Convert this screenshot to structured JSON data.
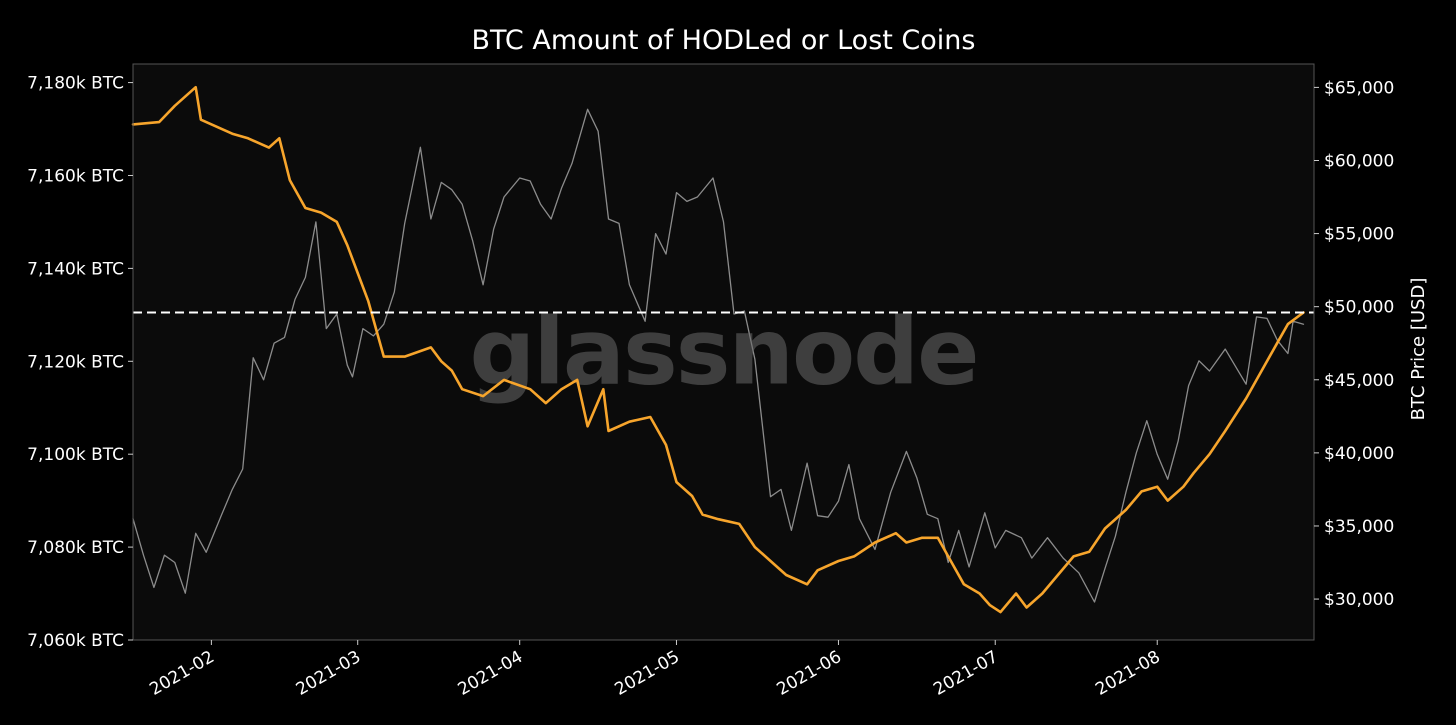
{
  "chart_data": {
    "type": "line",
    "title": "BTC Amount of HODLed or Lost Coins",
    "watermark": "glassnode",
    "colors": {
      "background": "#000000",
      "plot_background": "#0b0b0b",
      "hodl_line": "#f7a52c",
      "price_line": "#8c8c8c",
      "reference_line": "#ffffff",
      "frame": "#555555"
    },
    "x_axis": {
      "range": [
        "2021-01-17",
        "2021-08-31"
      ],
      "ticks": [
        {
          "date": "2021-02-01",
          "label": "2021-02"
        },
        {
          "date": "2021-03-01",
          "label": "2021-03"
        },
        {
          "date": "2021-04-01",
          "label": "2021-04"
        },
        {
          "date": "2021-05-01",
          "label": "2021-05"
        },
        {
          "date": "2021-06-01",
          "label": "2021-06"
        },
        {
          "date": "2021-07-01",
          "label": "2021-07"
        },
        {
          "date": "2021-08-01",
          "label": "2021-08"
        }
      ]
    },
    "y_left": {
      "range": [
        7060,
        7184
      ],
      "ticks": [
        {
          "value": 7060,
          "label": "7,060k BTC"
        },
        {
          "value": 7080,
          "label": "7,080k BTC"
        },
        {
          "value": 7100,
          "label": "7,100k BTC"
        },
        {
          "value": 7120,
          "label": "7,120k BTC"
        },
        {
          "value": 7140,
          "label": "7,140k BTC"
        },
        {
          "value": 7160,
          "label": "7,160k BTC"
        },
        {
          "value": 7180,
          "label": "7,180k BTC"
        }
      ]
    },
    "y_right": {
      "label": "BTC Price [USD]",
      "range": [
        27200,
        66600
      ],
      "ticks": [
        {
          "value": 30000,
          "label": "$30,000"
        },
        {
          "value": 35000,
          "label": "$35,000"
        },
        {
          "value": 40000,
          "label": "$40,000"
        },
        {
          "value": 45000,
          "label": "$45,000"
        },
        {
          "value": 50000,
          "label": "$50,000"
        },
        {
          "value": 55000,
          "label": "$55,000"
        },
        {
          "value": 60000,
          "label": "$60,000"
        },
        {
          "value": 65000,
          "label": "$65,000"
        }
      ]
    },
    "reference_line": {
      "axis": "left",
      "value": 7130.5,
      "style": "dashed"
    },
    "series": [
      {
        "axis": "left",
        "color": "#f7a52c",
        "points": [
          [
            "2021-01-17",
            7171
          ],
          [
            "2021-01-22",
            7171.5
          ],
          [
            "2021-01-25",
            7175
          ],
          [
            "2021-01-29",
            7179
          ],
          [
            "2021-01-30",
            7172
          ],
          [
            "2021-02-05",
            7169
          ],
          [
            "2021-02-08",
            7168
          ],
          [
            "2021-02-12",
            7166
          ],
          [
            "2021-02-14",
            7168
          ],
          [
            "2021-02-16",
            7159
          ],
          [
            "2021-02-19",
            7153
          ],
          [
            "2021-02-22",
            7152
          ],
          [
            "2021-02-25",
            7150
          ],
          [
            "2021-02-27",
            7145
          ],
          [
            "2021-03-01",
            7139
          ],
          [
            "2021-03-03",
            7133
          ],
          [
            "2021-03-05",
            7125
          ],
          [
            "2021-03-06",
            7121
          ],
          [
            "2021-03-10",
            7121
          ],
          [
            "2021-03-15",
            7123
          ],
          [
            "2021-03-17",
            7120
          ],
          [
            "2021-03-19",
            7118
          ],
          [
            "2021-03-21",
            7114
          ],
          [
            "2021-03-25",
            7112.5
          ],
          [
            "2021-03-29",
            7116
          ],
          [
            "2021-04-03",
            7114
          ],
          [
            "2021-04-06",
            7111
          ],
          [
            "2021-04-09",
            7114
          ],
          [
            "2021-04-12",
            7116
          ],
          [
            "2021-04-14",
            7106
          ],
          [
            "2021-04-17",
            7114
          ],
          [
            "2021-04-18",
            7105
          ],
          [
            "2021-04-22",
            7107
          ],
          [
            "2021-04-26",
            7108
          ],
          [
            "2021-04-29",
            7102
          ],
          [
            "2021-05-01",
            7094
          ],
          [
            "2021-05-04",
            7091
          ],
          [
            "2021-05-06",
            7087
          ],
          [
            "2021-05-09",
            7086
          ],
          [
            "2021-05-13",
            7085
          ],
          [
            "2021-05-16",
            7080
          ],
          [
            "2021-05-19",
            7077
          ],
          [
            "2021-05-22",
            7074
          ],
          [
            "2021-05-26",
            7072
          ],
          [
            "2021-05-28",
            7075
          ],
          [
            "2021-06-01",
            7077
          ],
          [
            "2021-06-04",
            7078
          ],
          [
            "2021-06-08",
            7081
          ],
          [
            "2021-06-12",
            7083
          ],
          [
            "2021-06-14",
            7081
          ],
          [
            "2021-06-17",
            7082
          ],
          [
            "2021-06-20",
            7082
          ],
          [
            "2021-06-22",
            7078
          ],
          [
            "2021-06-25",
            7072
          ],
          [
            "2021-06-28",
            7070
          ],
          [
            "2021-06-30",
            7067.5
          ],
          [
            "2021-07-02",
            7066
          ],
          [
            "2021-07-05",
            7070
          ],
          [
            "2021-07-07",
            7067
          ],
          [
            "2021-07-10",
            7070
          ],
          [
            "2021-07-13",
            7074
          ],
          [
            "2021-07-16",
            7078
          ],
          [
            "2021-07-19",
            7079
          ],
          [
            "2021-07-22",
            7084
          ],
          [
            "2021-07-26",
            7088
          ],
          [
            "2021-07-29",
            7092
          ],
          [
            "2021-08-01",
            7093
          ],
          [
            "2021-08-03",
            7090
          ],
          [
            "2021-08-06",
            7093
          ],
          [
            "2021-08-08",
            7096
          ],
          [
            "2021-08-11",
            7100
          ],
          [
            "2021-08-14",
            7105
          ],
          [
            "2021-08-18",
            7112
          ],
          [
            "2021-08-21",
            7118
          ],
          [
            "2021-08-24",
            7124
          ],
          [
            "2021-08-26",
            7128
          ],
          [
            "2021-08-29",
            7130.5
          ]
        ]
      },
      {
        "axis": "right",
        "color": "#8c8c8c",
        "points": [
          [
            "2021-01-17",
            35500
          ],
          [
            "2021-01-19",
            33000
          ],
          [
            "2021-01-21",
            30800
          ],
          [
            "2021-01-23",
            33000
          ],
          [
            "2021-01-25",
            32500
          ],
          [
            "2021-01-27",
            30400
          ],
          [
            "2021-01-29",
            34500
          ],
          [
            "2021-01-31",
            33200
          ],
          [
            "2021-02-03",
            35800
          ],
          [
            "2021-02-05",
            37500
          ],
          [
            "2021-02-07",
            38900
          ],
          [
            "2021-02-09",
            46500
          ],
          [
            "2021-02-11",
            45000
          ],
          [
            "2021-02-13",
            47500
          ],
          [
            "2021-02-15",
            47900
          ],
          [
            "2021-02-17",
            50500
          ],
          [
            "2021-02-19",
            52000
          ],
          [
            "2021-02-21",
            55800
          ],
          [
            "2021-02-23",
            48500
          ],
          [
            "2021-02-25",
            49500
          ],
          [
            "2021-02-27",
            46000
          ],
          [
            "2021-02-28",
            45200
          ],
          [
            "2021-03-02",
            48500
          ],
          [
            "2021-03-04",
            48000
          ],
          [
            "2021-03-06",
            48800
          ],
          [
            "2021-03-08",
            51000
          ],
          [
            "2021-03-10",
            55700
          ],
          [
            "2021-03-13",
            60900
          ],
          [
            "2021-03-15",
            56000
          ],
          [
            "2021-03-17",
            58500
          ],
          [
            "2021-03-19",
            58000
          ],
          [
            "2021-03-21",
            57000
          ],
          [
            "2021-03-23",
            54500
          ],
          [
            "2021-03-25",
            51500
          ],
          [
            "2021-03-27",
            55300
          ],
          [
            "2021-03-29",
            57500
          ],
          [
            "2021-04-01",
            58800
          ],
          [
            "2021-04-03",
            58600
          ],
          [
            "2021-04-05",
            57000
          ],
          [
            "2021-04-07",
            56000
          ],
          [
            "2021-04-09",
            58100
          ],
          [
            "2021-04-11",
            59800
          ],
          [
            "2021-04-14",
            63500
          ],
          [
            "2021-04-16",
            62000
          ],
          [
            "2021-04-18",
            56000
          ],
          [
            "2021-04-20",
            55700
          ],
          [
            "2021-04-22",
            51500
          ],
          [
            "2021-04-25",
            49000
          ],
          [
            "2021-04-27",
            55000
          ],
          [
            "2021-04-29",
            53600
          ],
          [
            "2021-05-01",
            57800
          ],
          [
            "2021-05-03",
            57200
          ],
          [
            "2021-05-05",
            57500
          ],
          [
            "2021-05-08",
            58800
          ],
          [
            "2021-05-10",
            55800
          ],
          [
            "2021-05-12",
            49500
          ],
          [
            "2021-05-14",
            49700
          ],
          [
            "2021-05-16",
            46400
          ],
          [
            "2021-05-19",
            37000
          ],
          [
            "2021-05-21",
            37500
          ],
          [
            "2021-05-23",
            34700
          ],
          [
            "2021-05-26",
            39300
          ],
          [
            "2021-05-28",
            35700
          ],
          [
            "2021-05-30",
            35600
          ],
          [
            "2021-06-01",
            36700
          ],
          [
            "2021-06-03",
            39200
          ],
          [
            "2021-06-05",
            35500
          ],
          [
            "2021-06-08",
            33400
          ],
          [
            "2021-06-11",
            37300
          ],
          [
            "2021-06-14",
            40100
          ],
          [
            "2021-06-16",
            38300
          ],
          [
            "2021-06-18",
            35800
          ],
          [
            "2021-06-20",
            35500
          ],
          [
            "2021-06-22",
            32500
          ],
          [
            "2021-06-24",
            34700
          ],
          [
            "2021-06-26",
            32200
          ],
          [
            "2021-06-29",
            35900
          ],
          [
            "2021-07-01",
            33500
          ],
          [
            "2021-07-03",
            34700
          ],
          [
            "2021-07-06",
            34200
          ],
          [
            "2021-07-08",
            32800
          ],
          [
            "2021-07-11",
            34200
          ],
          [
            "2021-07-14",
            32800
          ],
          [
            "2021-07-17",
            31800
          ],
          [
            "2021-07-20",
            29800
          ],
          [
            "2021-07-22",
            32100
          ],
          [
            "2021-07-24",
            34300
          ],
          [
            "2021-07-26",
            37300
          ],
          [
            "2021-07-28",
            40000
          ],
          [
            "2021-07-30",
            42200
          ],
          [
            "2021-08-01",
            39900
          ],
          [
            "2021-08-03",
            38200
          ],
          [
            "2021-08-05",
            40800
          ],
          [
            "2021-08-07",
            44600
          ],
          [
            "2021-08-09",
            46300
          ],
          [
            "2021-08-11",
            45600
          ],
          [
            "2021-08-14",
            47100
          ],
          [
            "2021-08-16",
            45900
          ],
          [
            "2021-08-18",
            44700
          ],
          [
            "2021-08-20",
            49300
          ],
          [
            "2021-08-22",
            49200
          ],
          [
            "2021-08-24",
            47700
          ],
          [
            "2021-08-26",
            46800
          ],
          [
            "2021-08-27",
            49000
          ],
          [
            "2021-08-29",
            48800
          ]
        ]
      }
    ]
  }
}
